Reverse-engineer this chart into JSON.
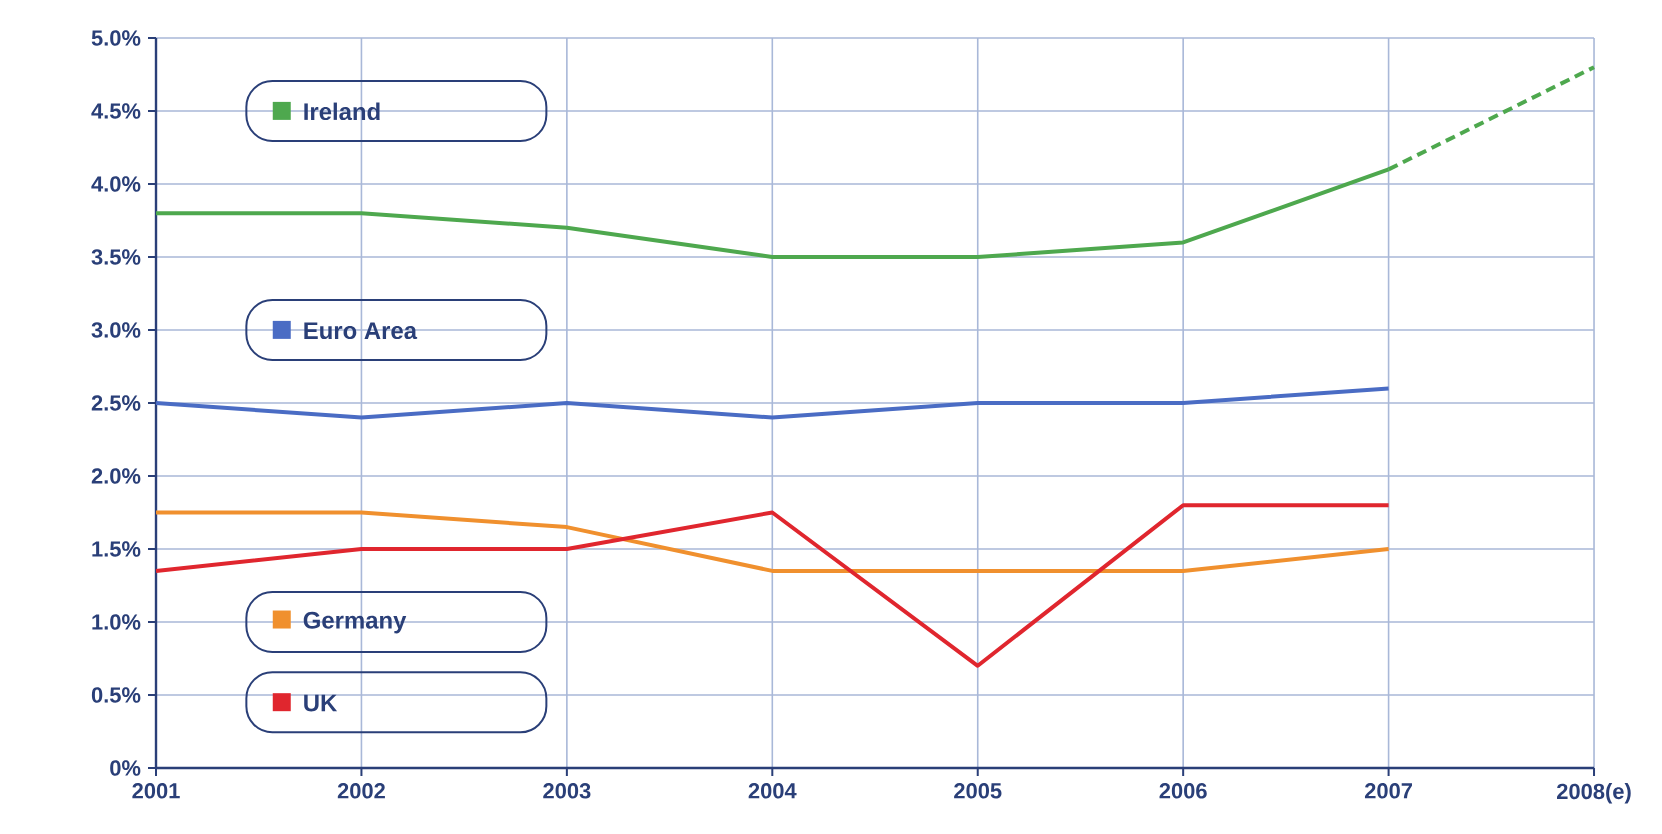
{
  "chart_data": {
    "type": "line",
    "categories": [
      "2001",
      "2002",
      "2003",
      "2004",
      "2005",
      "2006",
      "2007",
      "2008(e)"
    ],
    "series": [
      {
        "name": "Ireland",
        "color": "#4ea84e",
        "values": [
          3.8,
          3.8,
          3.7,
          3.5,
          3.5,
          3.6,
          4.1,
          null
        ]
      },
      {
        "name": "Euro Area",
        "color": "#4a6cc4",
        "values": [
          2.5,
          2.4,
          2.5,
          2.4,
          2.5,
          2.5,
          2.6,
          null
        ]
      },
      {
        "name": "Germany",
        "color": "#f0902e",
        "values": [
          1.75,
          1.75,
          1.65,
          1.35,
          1.35,
          1.35,
          1.5,
          null
        ]
      },
      {
        "name": "UK",
        "color": "#e0262e",
        "values": [
          1.35,
          1.5,
          1.5,
          1.75,
          0.7,
          1.8,
          1.8,
          null
        ]
      },
      {
        "color": "#4ea84e",
        "line_style": "dashed",
        "values": [
          null,
          null,
          null,
          null,
          null,
          null,
          4.1,
          4.8
        ]
      }
    ],
    "ylim": [
      0,
      5
    ],
    "yticks": [
      {
        "value": 0,
        "label": "0%"
      },
      {
        "value": 0.5,
        "label": "0.5%"
      },
      {
        "value": 1,
        "label": "1.0%"
      },
      {
        "value": 1.5,
        "label": "1.5%"
      },
      {
        "value": 2,
        "label": "2.0%"
      },
      {
        "value": 2.5,
        "label": "2.5%"
      },
      {
        "value": 3,
        "label": "3.0%"
      },
      {
        "value": 3.5,
        "label": "3.5%"
      },
      {
        "value": 4,
        "label": "4.0%"
      },
      {
        "value": 4.5,
        "label": "4.5%"
      },
      {
        "value": 5,
        "label": "5.0%"
      }
    ],
    "grid": true,
    "legend": "left"
  }
}
